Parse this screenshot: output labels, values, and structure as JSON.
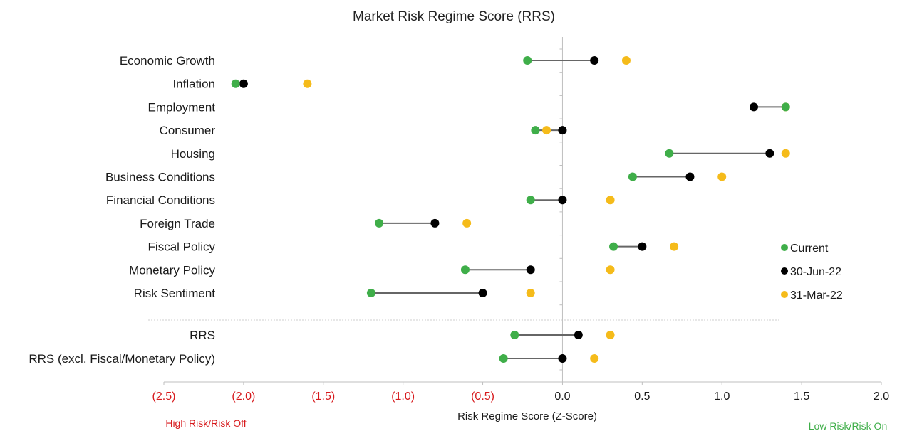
{
  "chart_data": {
    "type": "dot-plot",
    "title": "Market Risk Regime Score (RRS)",
    "xlabel": "Risk Regime Score (Z-Score)",
    "xlim": [
      -2.5,
      2.0
    ],
    "x_ticks": [
      -2.5,
      -2.0,
      -1.5,
      -1.0,
      -0.5,
      0.0,
      0.5,
      1.0,
      1.5,
      2.0
    ],
    "x_tick_labels": [
      "(2.5)",
      "(2.0)",
      "(1.5)",
      "(1.0)",
      "(0.5)",
      "0.0",
      "0.5",
      "1.0",
      "1.5",
      "2.0"
    ],
    "left_note": "High Risk/Risk Off",
    "right_note": "Low Risk/Risk On",
    "legend_position": "right",
    "categories": [
      "Economic Growth",
      "Inflation",
      "Employment",
      "Consumer",
      "Housing",
      "Business Conditions",
      "Financial Conditions",
      "Foreign Trade",
      "Fiscal Policy",
      "Monetary Policy",
      "Risk Sentiment",
      "RRS",
      "RRS (excl. Fiscal/Monetary Policy)"
    ],
    "series": [
      {
        "name": "Current",
        "color": "#3fae49",
        "values": [
          -0.22,
          -2.05,
          1.4,
          -0.17,
          0.67,
          0.44,
          -0.2,
          -1.15,
          0.32,
          -0.61,
          -1.2,
          -0.3,
          -0.37
        ]
      },
      {
        "name": "30-Jun-22",
        "color": "#000000",
        "values": [
          0.2,
          -2.0,
          1.2,
          0.0,
          1.3,
          0.8,
          0.0,
          -0.8,
          0.5,
          -0.2,
          -0.5,
          0.1,
          0.0
        ]
      },
      {
        "name": "31-Mar-22",
        "color": "#f5bb1a",
        "values": [
          0.4,
          -1.6,
          1.4,
          -0.1,
          1.4,
          1.0,
          0.3,
          -0.6,
          0.7,
          0.3,
          -0.2,
          0.3,
          0.2
        ]
      }
    ],
    "connector": {
      "from": "Current",
      "to": "30-Jun-22",
      "color": "#666666"
    },
    "colors": {
      "negative_tick": "#d7191c",
      "positive_tick": "#1a1a1a",
      "left_note": "#d7191c",
      "right_note": "#3fae49"
    }
  }
}
